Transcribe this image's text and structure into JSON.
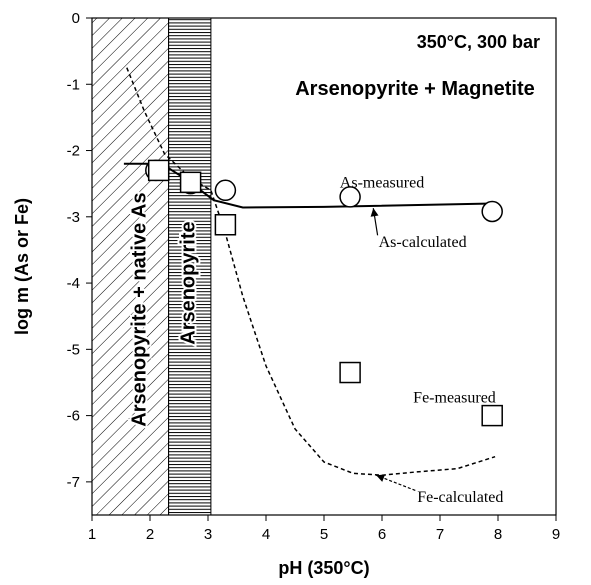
{
  "chart_data": {
    "type": "scatter",
    "title": "350°C, 300 bar",
    "xlabel": "pH (350°C)",
    "ylabel": "log m (As or Fe)",
    "xlim": [
      1,
      9
    ],
    "ylim": [
      -7.5,
      0
    ],
    "xticks": [
      "1",
      "2",
      "3",
      "4",
      "5",
      "6",
      "7",
      "8",
      "9"
    ],
    "yticks": [
      "0",
      "-1",
      "-2",
      "-3",
      "-4",
      "-5",
      "-6",
      "-7"
    ],
    "regions": [
      {
        "label": "Arsenopyrite + native As",
        "x_range": [
          1,
          2.32
        ],
        "pattern": "diagonal-hatch"
      },
      {
        "label": "Arsenopyrite",
        "x_range": [
          2.32,
          3.05
        ],
        "pattern": "horizontal-hatch"
      },
      {
        "label": "Arsenopyrite + Magnetite",
        "x_range": [
          3.05,
          9
        ],
        "pattern": "none"
      }
    ],
    "series": [
      {
        "name": "As-measured",
        "marker": "circle",
        "points": [
          [
            2.1,
            -2.3
          ],
          [
            2.7,
            -2.5
          ],
          [
            3.3,
            -2.6
          ],
          [
            5.45,
            -2.7
          ],
          [
            7.9,
            -2.92
          ]
        ]
      },
      {
        "name": "Fe-measured",
        "marker": "square",
        "points": [
          [
            2.15,
            -2.3
          ],
          [
            2.7,
            -2.48
          ],
          [
            3.3,
            -3.12
          ],
          [
            5.45,
            -5.35
          ],
          [
            7.9,
            -6.0
          ]
        ]
      },
      {
        "name": "As-calculated",
        "line": "solid",
        "points": [
          [
            1.55,
            -2.2
          ],
          [
            2.2,
            -2.2
          ],
          [
            2.6,
            -2.42
          ],
          [
            3.1,
            -2.75
          ],
          [
            3.6,
            -2.86
          ],
          [
            5.0,
            -2.85
          ],
          [
            7.9,
            -2.8
          ]
        ]
      },
      {
        "name": "Fe-calculated",
        "line": "dashed",
        "points": [
          [
            1.6,
            -0.75
          ],
          [
            1.9,
            -1.4
          ],
          [
            2.25,
            -2.05
          ],
          [
            2.7,
            -2.42
          ],
          [
            3.05,
            -2.6
          ],
          [
            3.3,
            -3.25
          ],
          [
            3.6,
            -4.2
          ],
          [
            4.0,
            -5.25
          ],
          [
            4.5,
            -6.2
          ],
          [
            5.0,
            -6.7
          ],
          [
            5.5,
            -6.87
          ],
          [
            6.0,
            -6.9
          ],
          [
            6.6,
            -6.85
          ],
          [
            7.3,
            -6.8
          ],
          [
            7.95,
            -6.62
          ]
        ]
      }
    ],
    "annotations": [
      {
        "text": "As-measured",
        "x": 6.0,
        "y": -2.5
      },
      {
        "text": "As-calculated",
        "x": 6.7,
        "y": -3.4,
        "arrow_to": [
          5.85,
          -2.87
        ]
      },
      {
        "text": "Fe-measured",
        "x": 7.25,
        "y": -5.75
      },
      {
        "text": "Fe-calculated",
        "x": 7.35,
        "y": -7.25,
        "arrow_to": [
          5.9,
          -6.9
        ]
      }
    ],
    "grid": false,
    "legend": "none"
  }
}
